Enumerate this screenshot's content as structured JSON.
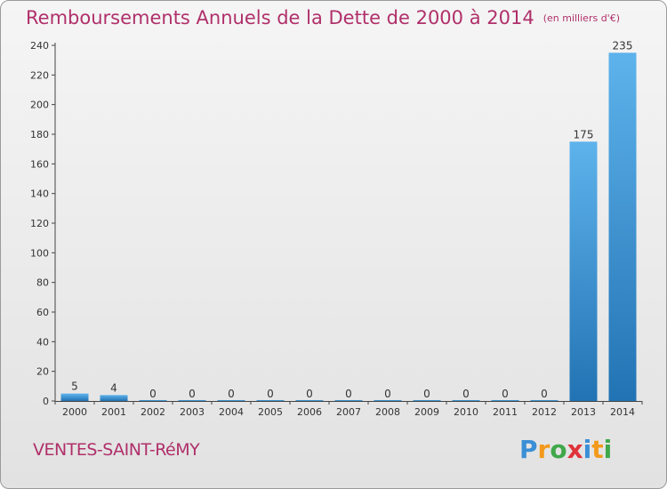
{
  "chart_data": {
    "type": "bar",
    "title": "Remboursements Annuels de la Dette de 2000 à 2014",
    "unit": "(en milliers d'€)",
    "categories": [
      "2000",
      "2001",
      "2002",
      "2003",
      "2004",
      "2005",
      "2006",
      "2007",
      "2008",
      "2009",
      "2010",
      "2011",
      "2012",
      "2013",
      "2014"
    ],
    "values": [
      5,
      4,
      0,
      0,
      0,
      0,
      0,
      0,
      0,
      0,
      0,
      0,
      0,
      175,
      235
    ],
    "data_labels": [
      "5",
      "4",
      "0",
      "0",
      "0",
      "0",
      "0",
      "0",
      "0",
      "0",
      "0",
      "0",
      "0",
      "175",
      "235"
    ],
    "ylim": [
      0,
      240
    ],
    "yticks": [
      0,
      20,
      40,
      60,
      80,
      100,
      120,
      140,
      160,
      180,
      200,
      220,
      240
    ],
    "ytick_labels": [
      "0",
      "20",
      "40",
      "60",
      "80",
      "100",
      "120",
      "140",
      "160",
      "180",
      "200",
      "220",
      "240"
    ],
    "grid": false,
    "bar_color": "#3a8fd6"
  },
  "footer": {
    "town": "VENTES-SAINT-RéMY"
  },
  "logo": {
    "letters": [
      "P",
      "r",
      "o",
      "x",
      "i",
      "t",
      "i"
    ]
  }
}
